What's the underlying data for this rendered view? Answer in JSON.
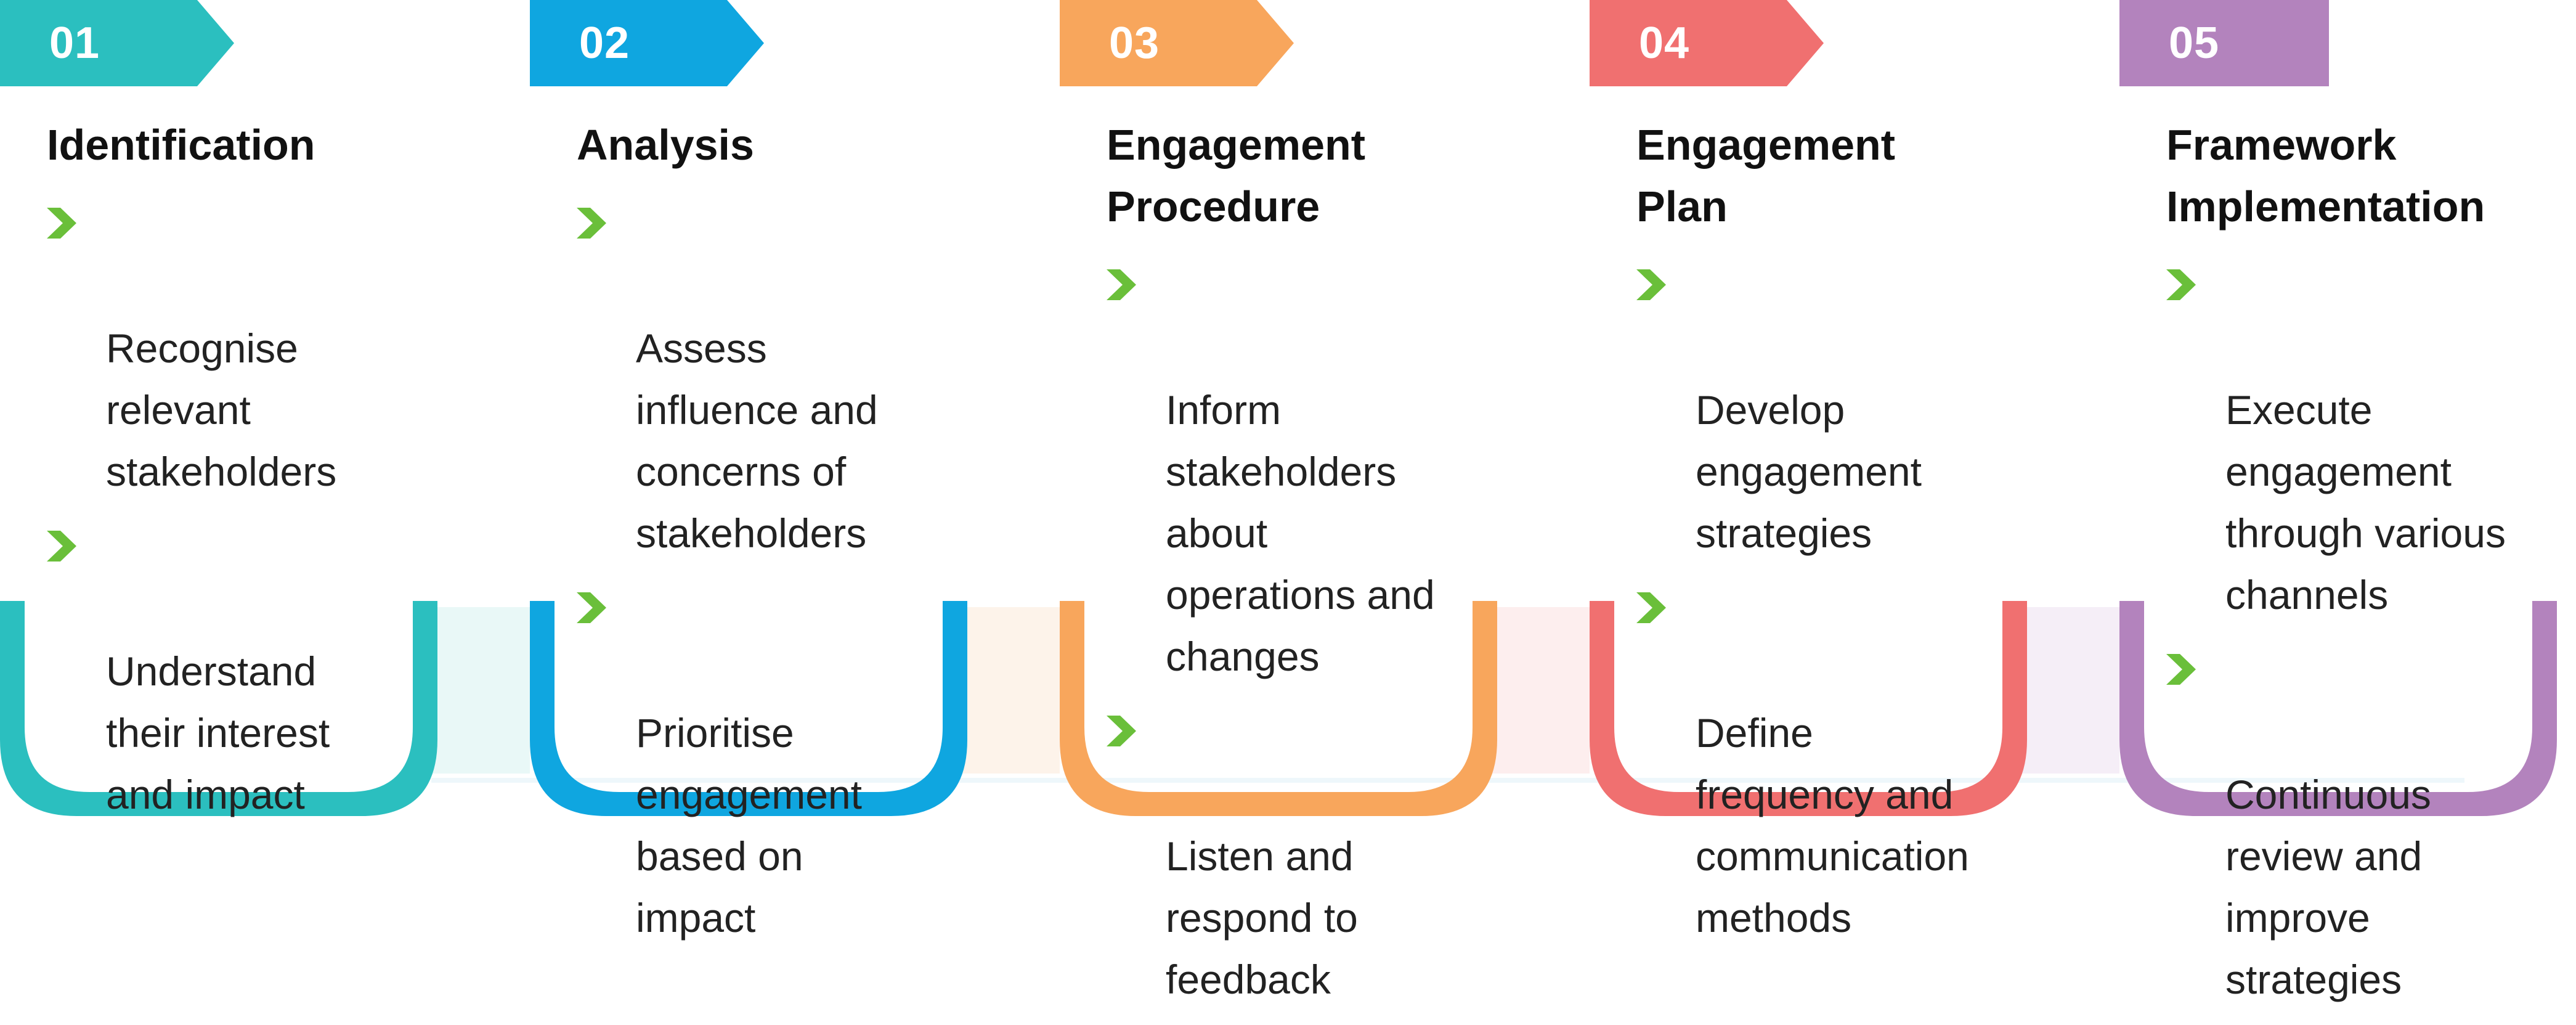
{
  "colors": {
    "arrow": "#6abf3a",
    "connector": "#d6f3f1"
  },
  "steps": [
    {
      "number": "01",
      "title": "Identification",
      "color": "#2bbfbf",
      "bullets": [
        "Recognise\nrelevant\nstakeholders",
        "Understand\ntheir interest\nand impact"
      ]
    },
    {
      "number": "02",
      "title": "Analysis",
      "color": "#0fa6e0",
      "bullets": [
        "Assess\ninfluence and\nconcerns of\nstakeholders",
        "Prioritise\nengagement\nbased on\nimpact"
      ]
    },
    {
      "number": "03",
      "title": "Engagement\nProcedure",
      "color": "#f8a65c",
      "bullets": [
        "Inform\nstakeholders\nabout\noperations and\nchanges",
        "Listen and\nrespond to\nfeedback"
      ]
    },
    {
      "number": "04",
      "title": "Engagement\nPlan",
      "color": "#f07070",
      "bullets": [
        "Develop\nengagement\nstrategies",
        "Define\nfrequency and\ncommunication\nmethods"
      ]
    },
    {
      "number": "05",
      "title": "Framework\nImplementation",
      "color": "#b383bd",
      "bullets": [
        "Execute\nengagement\nthrough various\nchannels",
        "Continuous\nreview and\nimprove\nstrategies"
      ]
    }
  ]
}
